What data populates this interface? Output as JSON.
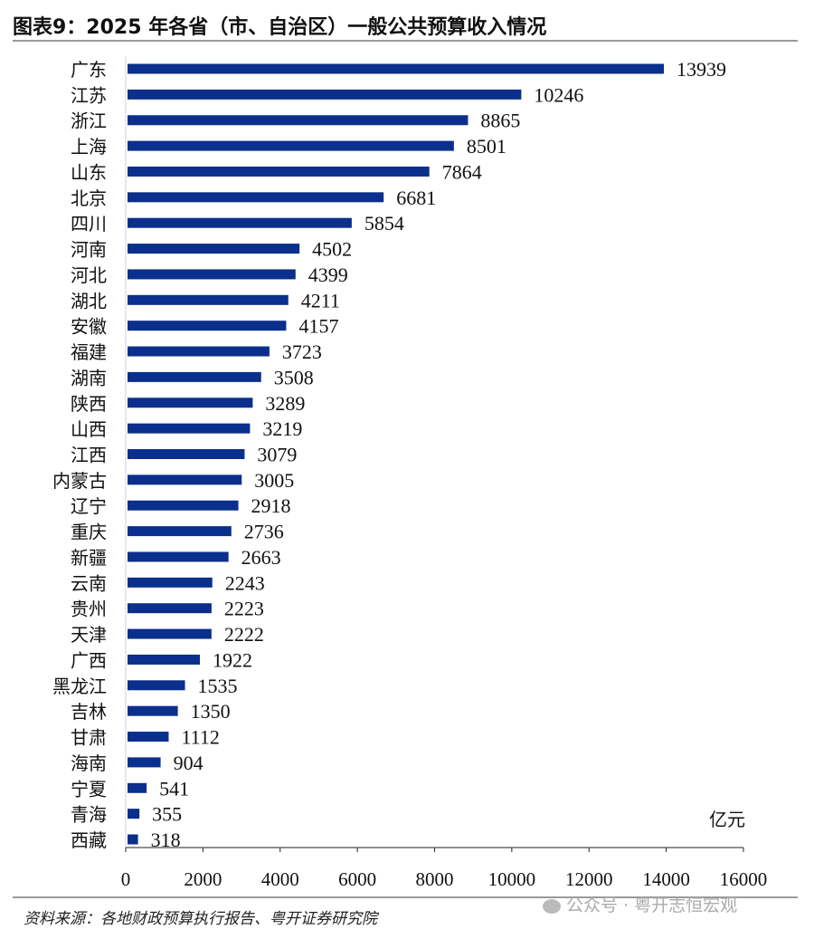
{
  "title": "图表9：2025 年各省（市、自治区）一般公共预算收入情况",
  "source": "资料来源：各地财政预算执行报告、粤开证券研究院",
  "watermark": "公众号 · 粤开志恒宏观",
  "chart_data": {
    "type": "bar",
    "orientation": "horizontal",
    "categories": [
      "广东",
      "江苏",
      "浙江",
      "上海",
      "山东",
      "北京",
      "四川",
      "河南",
      "河北",
      "湖北",
      "安徽",
      "福建",
      "湖南",
      "陕西",
      "山西",
      "江西",
      "内蒙古",
      "辽宁",
      "重庆",
      "新疆",
      "云南",
      "贵州",
      "天津",
      "广西",
      "黑龙江",
      "吉林",
      "甘肃",
      "海南",
      "宁夏",
      "青海",
      "西藏"
    ],
    "values": [
      13939,
      10246,
      8865,
      8501,
      7864,
      6681,
      5854,
      4502,
      4399,
      4211,
      4157,
      3723,
      3508,
      3289,
      3219,
      3079,
      3005,
      2918,
      2736,
      2663,
      2243,
      2223,
      2222,
      1922,
      1535,
      1350,
      1112,
      904,
      541,
      355,
      318
    ],
    "unit_label": "亿元",
    "xlim": [
      0,
      16000
    ],
    "xticks": [
      0,
      2000,
      4000,
      6000,
      8000,
      10000,
      12000,
      14000,
      16000
    ],
    "grid": false,
    "bar_color": "#0b2f8c",
    "data_labels": true
  }
}
